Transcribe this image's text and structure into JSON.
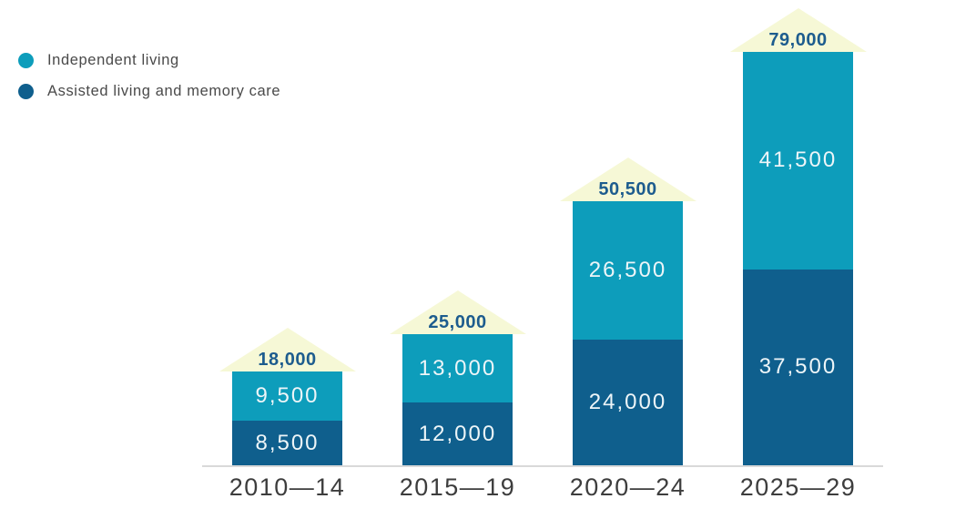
{
  "legend": {
    "items": [
      {
        "label": "Independent living",
        "color": "#0d9dbb"
      },
      {
        "label": "Assisted living and memory care",
        "color": "#0f5f8d"
      }
    ]
  },
  "chart_data": {
    "type": "bar",
    "subtype": "stacked-column",
    "title": "",
    "categories": [
      "2010—14",
      "2015—19",
      "2020—24",
      "2025—29"
    ],
    "series": [
      {
        "name": "Assisted living and memory care",
        "color": "#0f5f8d",
        "stack_position": "bottom",
        "values": [
          8500,
          12000,
          24000,
          37500
        ],
        "labels": [
          "8,500",
          "12,000",
          "24,000",
          "37,500"
        ]
      },
      {
        "name": "Independent living",
        "color": "#0d9dbb",
        "stack_position": "top",
        "values": [
          9500,
          13000,
          26500,
          41500
        ],
        "labels": [
          "9,500",
          "13,000",
          "26,500",
          "41,500"
        ]
      }
    ],
    "totals": {
      "values": [
        18000,
        25000,
        50500,
        79000
      ],
      "labels": [
        "18,000",
        "25,000",
        "50,500",
        "79,000"
      ]
    },
    "ylim": [
      0,
      79000
    ],
    "grid": false,
    "legend_position": "top-left",
    "annotations": "total for each period shown in a pale-yellow roof arrow above the column"
  },
  "colors": {
    "independent_living": "#0d9dbb",
    "assisted_living": "#0f5f8d",
    "roof_triangle": "#f6f8d6",
    "total_label": "#1d5c8e",
    "segment_label": "#edf5f8",
    "axis_line": "#d9d9d9",
    "category_label": "#3d3d3d",
    "legend_text": "#4a4a4a",
    "background": "#ffffff"
  }
}
